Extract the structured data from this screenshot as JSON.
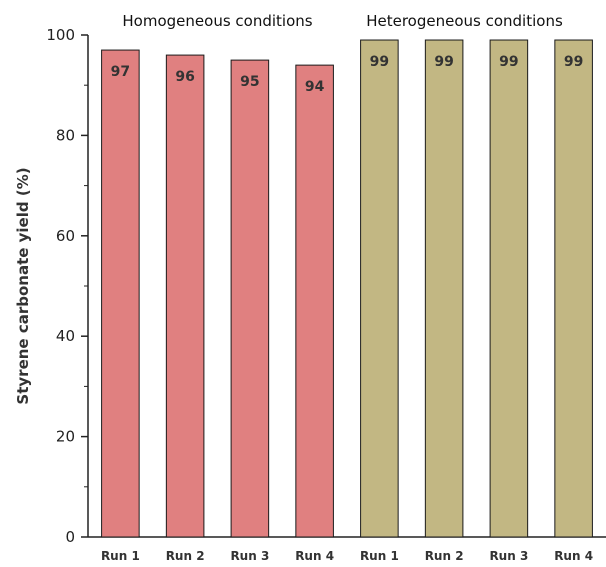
{
  "chart_data": {
    "type": "bar",
    "title": "",
    "xlabel": "",
    "ylabel": "Styrene carbonate yield (%)",
    "ylim": [
      0,
      100
    ],
    "yticks": [
      0,
      20,
      40,
      60,
      80,
      100
    ],
    "grid": false,
    "groups": [
      {
        "label": "Homogeneous conditions",
        "color": "#e08080",
        "categories": [
          "Run 1",
          "Run 2",
          "Run 3",
          "Run 4"
        ],
        "values": [
          97,
          96,
          95,
          94
        ]
      },
      {
        "label": "Heterogeneous conditions",
        "color": "#c2b783",
        "categories": [
          "Run 1",
          "Run 2",
          "Run 3",
          "Run 4"
        ],
        "values": [
          99,
          99,
          99,
          99
        ]
      }
    ]
  }
}
